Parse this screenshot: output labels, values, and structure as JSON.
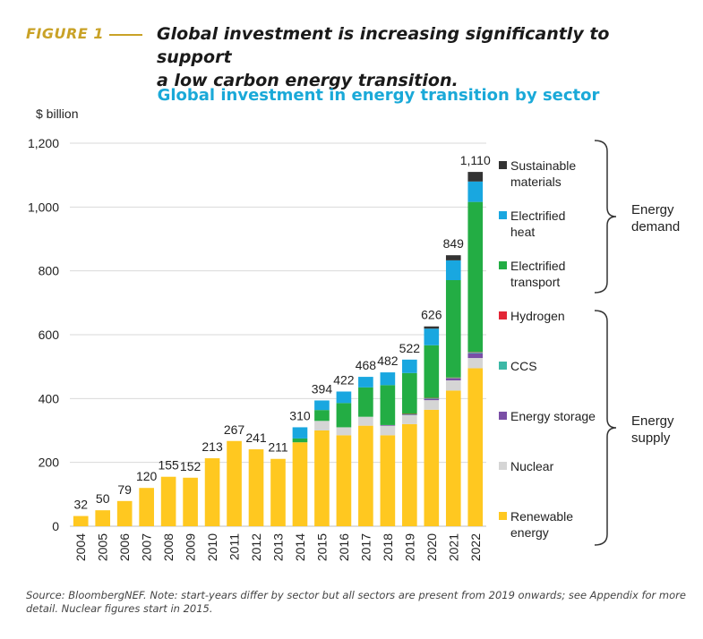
{
  "figure": {
    "label": "FIGURE 1",
    "caption_line1": "Global investment is increasing significantly to support",
    "caption_line2": "a low carbon energy transition."
  },
  "source_note": "Source: BloombergNEF. Note: start-years differ by sector but all sectors are present from 2019 onwards; see Appendix for more detail. Nuclear figures start in 2015.",
  "chart_data": {
    "type": "bar",
    "stacked": true,
    "title": "Global investment in energy transition by sector",
    "ylabel": "$ billion",
    "ylim": [
      0,
      1200
    ],
    "yticks": [
      0,
      200,
      400,
      600,
      800,
      1000,
      1200
    ],
    "ytick_labels": [
      "0",
      "200",
      "400",
      "600",
      "800",
      "1,000",
      "1,200"
    ],
    "grid": true,
    "categories": [
      "2004",
      "2005",
      "2006",
      "2007",
      "2008",
      "2009",
      "2010",
      "2011",
      "2012",
      "2013",
      "2014",
      "2015",
      "2016",
      "2017",
      "2018",
      "2019",
      "2020",
      "2021",
      "2022"
    ],
    "totals": [
      32,
      50,
      79,
      120,
      155,
      152,
      213,
      267,
      241,
      211,
      310,
      394,
      422,
      468,
      482,
      522,
      626,
      849,
      1110
    ],
    "total_labels": [
      "32",
      "50",
      "79",
      "120",
      "155",
      "152",
      "213",
      "267",
      "241",
      "211",
      "310",
      "394",
      "422",
      "468",
      "482",
      "522",
      "626",
      "849",
      "1,110"
    ],
    "series": [
      {
        "name": "Renewable energy",
        "color": "#ffc820",
        "values": [
          32,
          50,
          79,
          120,
          155,
          152,
          213,
          267,
          241,
          211,
          263,
          300,
          285,
          315,
          285,
          320,
          365,
          425,
          495
        ]
      },
      {
        "name": "Nuclear",
        "color": "#d5d5d5",
        "values": [
          0,
          0,
          0,
          0,
          0,
          0,
          0,
          0,
          0,
          0,
          0,
          30,
          25,
          28,
          30,
          28,
          30,
          32,
          32
        ]
      },
      {
        "name": "Energy storage",
        "color": "#7a4ea6",
        "values": [
          0,
          0,
          0,
          0,
          0,
          0,
          0,
          0,
          0,
          0,
          0,
          0,
          0,
          0,
          2,
          2,
          4,
          6,
          15
        ]
      },
      {
        "name": "CCS",
        "color": "#3cb8a6",
        "values": [
          0,
          0,
          0,
          0,
          0,
          0,
          0,
          0,
          0,
          0,
          0,
          0,
          0,
          0,
          0,
          1,
          2,
          2,
          3
        ]
      },
      {
        "name": "Hydrogen",
        "color": "#e32636",
        "values": [
          0,
          0,
          0,
          0,
          0,
          0,
          0,
          0,
          0,
          0,
          0,
          0,
          0,
          0,
          0,
          1,
          1,
          1,
          1
        ]
      },
      {
        "name": "Electrified transport",
        "color": "#23ad44",
        "values": [
          0,
          0,
          0,
          0,
          0,
          0,
          0,
          0,
          0,
          0,
          12,
          34,
          76,
          92,
          125,
          128,
          165,
          305,
          470
        ]
      },
      {
        "name": "Electrified heat",
        "color": "#19a7e0",
        "values": [
          0,
          0,
          0,
          0,
          0,
          0,
          0,
          0,
          0,
          0,
          35,
          30,
          36,
          33,
          40,
          42,
          52,
          62,
          64
        ]
      },
      {
        "name": "Sustainable materials",
        "color": "#333333",
        "values": [
          0,
          0,
          0,
          0,
          0,
          0,
          0,
          0,
          0,
          0,
          0,
          0,
          0,
          0,
          0,
          0,
          7,
          16,
          30
        ]
      }
    ],
    "legend_order": [
      "Sustainable materials",
      "Electrified heat",
      "Electrified transport",
      "Hydrogen",
      "CCS",
      "Energy storage",
      "Nuclear",
      "Renewable energy"
    ],
    "legend_placement": "right",
    "groups": [
      {
        "label_line1": "Energy",
        "label_line2": "demand",
        "members": [
          "Sustainable materials",
          "Electrified heat",
          "Electrified transport"
        ]
      },
      {
        "label_line1": "Energy",
        "label_line2": "supply",
        "members": [
          "Hydrogen",
          "CCS",
          "Energy storage",
          "Nuclear",
          "Renewable energy"
        ]
      }
    ]
  }
}
